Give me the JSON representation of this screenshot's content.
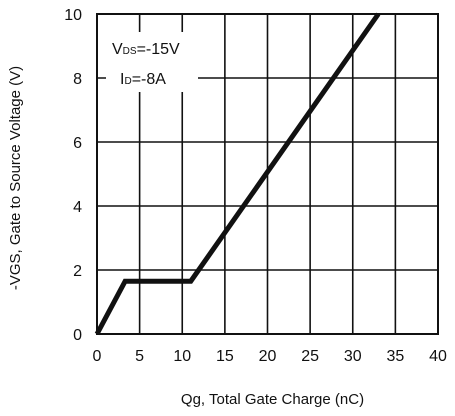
{
  "chart_data": {
    "type": "line",
    "xlabel": "Qg, Total Gate Charge (nC)",
    "ylabel": "-VGS, Gate to Source Voltage (V)",
    "xlim": [
      0,
      40
    ],
    "ylim": [
      0,
      10
    ],
    "x_ticks": [
      "0",
      "5",
      "10",
      "15",
      "20",
      "25",
      "30",
      "35",
      "40"
    ],
    "y_ticks": [
      "0",
      "2",
      "4",
      "6",
      "8",
      "10"
    ],
    "grid": true,
    "series": [
      {
        "x": [
          0,
          3.3,
          11,
          33
        ],
        "y": [
          0,
          1.65,
          1.65,
          10
        ],
        "color": "#111111"
      }
    ],
    "annotations": {
      "vds": {
        "main": "V",
        "sub": "DS",
        "rest": "=-15V"
      },
      "id": {
        "main": "I",
        "sub": "D",
        "rest": "=-8A"
      }
    }
  }
}
